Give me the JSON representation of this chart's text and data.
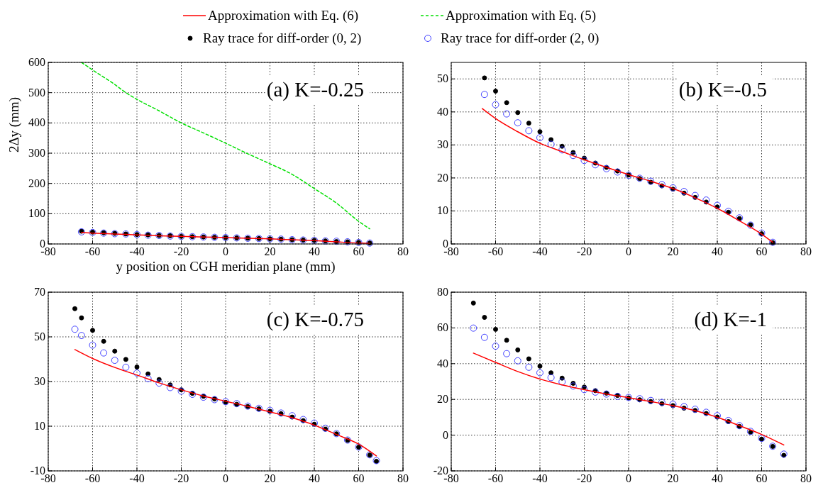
{
  "chart_data": [
    {
      "type": "line",
      "xlabel": "y position on CGH meridian plane (mm)",
      "ylabel": "2Δy (mm)",
      "annotations": [
        "(a) K=-0.25"
      ],
      "xlim": [
        -80,
        80
      ],
      "xticks": [
        -80,
        -60,
        -40,
        -20,
        0,
        20,
        40,
        60,
        80
      ],
      "ylim": [
        0,
        600
      ],
      "yticks": [
        0,
        100,
        200,
        300,
        400,
        500,
        600
      ],
      "grid": true,
      "legend": "top",
      "series": [
        {
          "name": "Approximation with Eq. (6)",
          "color": "#ff0000",
          "line_style": "solid",
          "marker": "none",
          "x": [
            -65,
            -60,
            -50,
            -40,
            -30,
            -20,
            -10,
            0,
            10,
            20,
            30,
            40,
            50,
            60,
            65
          ],
          "values": [
            38,
            36,
            33,
            30,
            27,
            25,
            23,
            21,
            19,
            17,
            14,
            11,
            7,
            3,
            2
          ]
        },
        {
          "name": "Approximation with Eq. (5)",
          "color": "#00e000",
          "line_style": "dashed",
          "marker": "none",
          "x": [
            -65,
            -60,
            -50,
            -45,
            -40,
            -30,
            -20,
            -10,
            0,
            10,
            20,
            30,
            40,
            50,
            60,
            65
          ],
          "values": [
            600,
            575,
            527,
            500,
            478,
            440,
            400,
            367,
            333,
            298,
            265,
            230,
            183,
            135,
            75,
            50
          ]
        },
        {
          "name": "Ray trace for diff-order (0, 2)",
          "type": "scatter",
          "color": "#000000",
          "marker": "circle",
          "x": [
            -65,
            -60,
            -55,
            -50,
            -45,
            -40,
            -35,
            -30,
            -25,
            -20,
            -15,
            -10,
            -5,
            0,
            5,
            10,
            15,
            20,
            25,
            30,
            35,
            40,
            45,
            50,
            55,
            60,
            65
          ],
          "values": [
            42,
            39,
            37,
            35,
            33,
            31,
            30,
            28,
            27,
            25,
            24,
            23,
            22,
            21,
            20,
            19,
            18,
            17,
            16,
            14,
            13,
            12,
            10,
            8,
            7,
            5,
            3
          ]
        },
        {
          "name": "Ray trace for diff-order (2, 0)",
          "type": "scatter",
          "color": "#4040ff",
          "marker": "circle",
          "x": [
            -65,
            -60,
            -55,
            -50,
            -45,
            -40,
            -35,
            -30,
            -25,
            -20,
            -15,
            -10,
            -5,
            0,
            5,
            10,
            15,
            20,
            25,
            30,
            35,
            40,
            45,
            50,
            55,
            60,
            65
          ],
          "values": [
            40,
            38,
            36,
            34,
            33,
            31,
            29,
            28,
            26,
            25,
            24,
            23,
            22,
            21,
            20,
            19,
            18,
            17,
            16,
            14,
            13,
            12,
            10,
            9,
            7,
            5,
            3
          ]
        }
      ]
    },
    {
      "type": "line",
      "annotations": [
        "(b) K=-0.5"
      ],
      "xlim": [
        -80,
        80
      ],
      "xticks": [
        -80,
        -60,
        -40,
        -20,
        0,
        20,
        40,
        60,
        80
      ],
      "ylim": [
        0,
        55
      ],
      "yticks": [
        0,
        10,
        20,
        30,
        40,
        50
      ],
      "grid": true,
      "series": [
        {
          "color": "#ff0000",
          "line_style": "solid",
          "marker": "none",
          "x": [
            -66,
            -60,
            -50,
            -40,
            -30,
            -20,
            -10,
            0,
            10,
            20,
            30,
            40,
            50,
            60,
            65
          ],
          "values": [
            41,
            38,
            34,
            30.5,
            28,
            25.5,
            23.2,
            21,
            19,
            16.8,
            14,
            10.8,
            7,
            3,
            0.5
          ]
        },
        {
          "type": "scatter",
          "color": "#000000",
          "marker": "circle",
          "x": [
            -65,
            -60,
            -55,
            -50,
            -45,
            -40,
            -35,
            -30,
            -25,
            -20,
            -15,
            -10,
            -5,
            0,
            5,
            10,
            15,
            20,
            25,
            30,
            35,
            40,
            45,
            50,
            55,
            60,
            65
          ],
          "values": [
            50.3,
            46.3,
            42.8,
            39.8,
            36.6,
            34,
            31.6,
            29.6,
            27.7,
            26,
            24.5,
            23.2,
            22.1,
            20.9,
            19.8,
            18.7,
            17.6,
            16.6,
            15.4,
            14.1,
            12.7,
            11.2,
            9.6,
            7.7,
            5.8,
            3.1,
            0.4
          ]
        },
        {
          "type": "scatter",
          "color": "#4040ff",
          "marker": "circle",
          "x": [
            -65,
            -60,
            -55,
            -50,
            -45,
            -40,
            -35,
            -30,
            -25,
            -20,
            -15,
            -10,
            -5,
            0,
            5,
            10,
            15,
            20,
            25,
            30,
            35,
            40,
            45,
            50,
            55,
            60,
            65
          ],
          "values": [
            45.3,
            42.2,
            39.4,
            36.7,
            34.3,
            32.2,
            30.2,
            28.5,
            26.8,
            25.3,
            24,
            22.8,
            21.8,
            20.8,
            19.9,
            19,
            18,
            17,
            15.9,
            14.7,
            13.3,
            11.7,
            9.9,
            7.9,
            5.7,
            3.3,
            0.5
          ]
        }
      ]
    },
    {
      "type": "line",
      "annotations": [
        "(c) K=-0.75"
      ],
      "xlim": [
        -80,
        80
      ],
      "xticks": [
        -80,
        -60,
        -40,
        -20,
        0,
        20,
        40,
        60,
        80
      ],
      "ylim": [
        -10,
        70
      ],
      "yticks": [
        -10,
        10,
        30,
        50,
        70
      ],
      "grid": true,
      "series": [
        {
          "color": "#ff0000",
          "line_style": "solid",
          "marker": "none",
          "x": [
            -68,
            -60,
            -50,
            -40,
            -30,
            -20,
            -10,
            0,
            10,
            20,
            30,
            40,
            50,
            60,
            68
          ],
          "values": [
            44.3,
            40.3,
            36.3,
            32.9,
            29.4,
            26.3,
            23.5,
            21.2,
            18.9,
            16.4,
            13.8,
            10.5,
            6.3,
            2,
            -3.3
          ]
        },
        {
          "type": "scatter",
          "color": "#000000",
          "marker": "circle",
          "x": [
            -68,
            -65,
            -60,
            -55,
            -50,
            -45,
            -40,
            -35,
            -30,
            -25,
            -20,
            -15,
            -10,
            -5,
            0,
            5,
            10,
            15,
            20,
            25,
            30,
            35,
            40,
            45,
            50,
            55,
            60,
            65,
            68
          ],
          "values": [
            62.6,
            58.5,
            52.9,
            48,
            43.6,
            39.9,
            36.5,
            33.4,
            30.9,
            28.5,
            26.3,
            24.7,
            23.4,
            22.2,
            20.7,
            19.8,
            18.8,
            17.8,
            16.7,
            15.6,
            14.1,
            12.5,
            10.9,
            8.7,
            6.6,
            3.7,
            0.6,
            -2.9,
            -5.7
          ]
        },
        {
          "type": "scatter",
          "color": "#4040ff",
          "marker": "circle",
          "x": [
            -68,
            -65,
            -60,
            -55,
            -50,
            -45,
            -40,
            -35,
            -30,
            -25,
            -20,
            -15,
            -10,
            -5,
            0,
            5,
            10,
            15,
            20,
            25,
            30,
            35,
            40,
            45,
            50,
            55,
            60,
            65,
            68
          ],
          "values": [
            53.4,
            50.6,
            46.3,
            42.8,
            39.5,
            36.4,
            33.8,
            31.3,
            29.3,
            27.3,
            25.7,
            24.3,
            23,
            21.9,
            21,
            20.1,
            19,
            18,
            17.1,
            15.9,
            14.7,
            13,
            11.4,
            9.1,
            6.7,
            3.8,
            0.7,
            -2.8,
            -5.4
          ]
        }
      ]
    },
    {
      "type": "line",
      "annotations": [
        "(d) K=-1"
      ],
      "xlim": [
        -80,
        80
      ],
      "xticks": [
        -80,
        -60,
        -40,
        -20,
        0,
        20,
        40,
        60,
        80
      ],
      "ylim": [
        -20,
        80
      ],
      "yticks": [
        -20,
        0,
        20,
        40,
        60,
        80
      ],
      "grid": true,
      "series": [
        {
          "color": "#ff0000",
          "line_style": "solid",
          "marker": "none",
          "x": [
            -70,
            -60,
            -50,
            -40,
            -30,
            -20,
            -10,
            0,
            10,
            20,
            30,
            40,
            50,
            60,
            70
          ],
          "values": [
            45.9,
            40.7,
            35.6,
            31.4,
            28.1,
            25.4,
            23,
            21,
            18.8,
            16.5,
            13.7,
            10,
            5.3,
            0.4,
            -5.5
          ]
        },
        {
          "type": "scatter",
          "color": "#000000",
          "marker": "circle",
          "x": [
            -70,
            -65,
            -60,
            -55,
            -50,
            -45,
            -40,
            -35,
            -30,
            -25,
            -20,
            -15,
            -10,
            -5,
            0,
            5,
            10,
            15,
            20,
            25,
            30,
            35,
            40,
            45,
            50,
            55,
            60,
            65,
            70
          ],
          "values": [
            73.9,
            65.9,
            59.2,
            53.1,
            47.7,
            42.7,
            38.6,
            34.9,
            31.9,
            29,
            26.9,
            24.9,
            23.5,
            22.2,
            20.8,
            19.8,
            18.8,
            17.6,
            16.5,
            15.1,
            13.8,
            12.1,
            10.1,
            7.6,
            4.9,
            1.6,
            -2.2,
            -6.3,
            -11.3
          ]
        },
        {
          "type": "scatter",
          "color": "#4040ff",
          "marker": "circle",
          "x": [
            -70,
            -65,
            -60,
            -55,
            -50,
            -45,
            -40,
            -35,
            -30,
            -25,
            -20,
            -15,
            -10,
            -5,
            0,
            5,
            10,
            15,
            20,
            25,
            30,
            35,
            40,
            45,
            50,
            55,
            60,
            65,
            70
          ],
          "values": [
            59.9,
            54.7,
            49.8,
            45.6,
            41.6,
            38,
            34.9,
            32.2,
            29.8,
            27.5,
            25.5,
            24.1,
            23,
            21.7,
            21.1,
            20.4,
            19.4,
            18.3,
            17.3,
            16,
            14.5,
            12.8,
            10.9,
            8.2,
            5.3,
            2.1,
            -1.8,
            -6.2,
            -10.6
          ]
        }
      ]
    }
  ]
}
